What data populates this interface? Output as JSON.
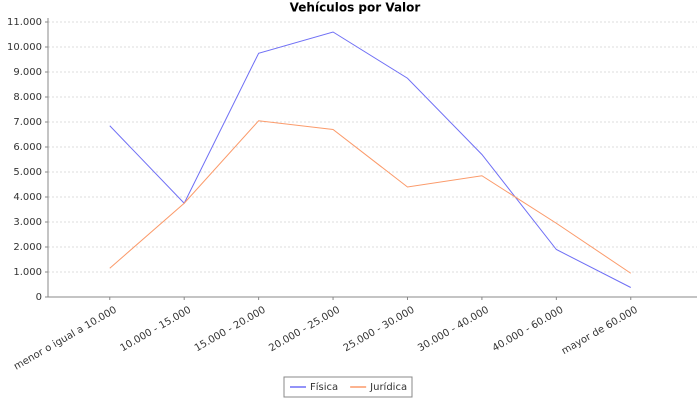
{
  "chart_data": {
    "type": "line",
    "title": "Vehículos por Valor",
    "categories": [
      "menor o igual a 10.000",
      "10.000 - 15.000",
      "15.000 - 20.000",
      "20.000 - 25.000",
      "25.000 - 30.000",
      "30.000 - 40.000",
      "40.000 - 60.000",
      "mayor de 60.000"
    ],
    "series": [
      {
        "name": "Física",
        "color": "#6f6ff5",
        "values": [
          6850,
          3750,
          9750,
          10600,
          8750,
          5700,
          1900,
          380
        ]
      },
      {
        "name": "Jurídica",
        "color": "#fb9a6a",
        "values": [
          1150,
          3750,
          7050,
          6700,
          4400,
          4850,
          2950,
          950
        ]
      }
    ],
    "ylim": [
      0,
      11000
    ],
    "yticks": [
      0,
      {
        "value": 1000,
        "label": "1.000"
      },
      {
        "value": 2000,
        "label": "2.000"
      },
      {
        "value": 3000,
        "label": "3.000"
      },
      {
        "value": 4000,
        "label": "4.000"
      },
      {
        "value": 5000,
        "label": "5.000"
      },
      {
        "value": 6000,
        "label": "6.000"
      },
      {
        "value": 7000,
        "label": "7.000"
      },
      {
        "value": 8000,
        "label": "8.000"
      },
      {
        "value": 9000,
        "label": "9.000"
      },
      {
        "value": 10000,
        "label": "10.000"
      },
      {
        "value": 11000,
        "label": "11.000"
      }
    ],
    "grid": true
  }
}
